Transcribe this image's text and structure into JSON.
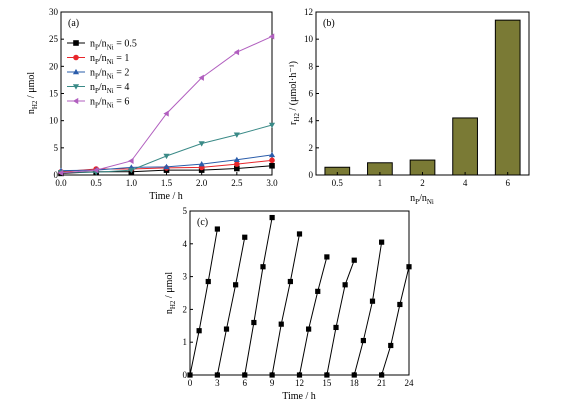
{
  "chart_data": [
    {
      "id": "a",
      "type": "line",
      "panel_label": "(a)",
      "xlabel": "Time / h",
      "ylabel_main": "n",
      "ylabel_sub": "H2",
      "ylabel_unit": " / μmol",
      "xlim": [
        0,
        3
      ],
      "ylim": [
        0,
        30
      ],
      "xticks": [
        "0.0",
        "0.5",
        "1.0",
        "1.5",
        "2.0",
        "2.5",
        "3.0"
      ],
      "xtick_values": [
        0,
        0.5,
        1,
        1.5,
        2,
        2.5,
        3
      ],
      "yticks": [
        "0",
        "5",
        "10",
        "15",
        "20",
        "25",
        "30"
      ],
      "ytick_values": [
        0,
        5,
        10,
        15,
        20,
        25,
        30
      ],
      "x": [
        0,
        0.5,
        1,
        1.5,
        2,
        2.5,
        3
      ],
      "legend_placement": "top-left",
      "series": [
        {
          "name": "n_P/n_Ni = 0.5",
          "label_a": "n",
          "sub_a": "P",
          "label_b": "/n",
          "sub_b": "Ni",
          "value": " = 0.5",
          "marker": "square",
          "color": "#000000",
          "values": [
            0.3,
            0.6,
            0.6,
            0.9,
            0.9,
            1.2,
            1.7
          ]
        },
        {
          "name": "n_P/n_Ni = 1",
          "label_a": "n",
          "sub_a": "P",
          "label_b": "/n",
          "sub_b": "Ni",
          "value": " = 1",
          "marker": "circle",
          "color": "#e8262b",
          "values": [
            0.6,
            1.1,
            1.1,
            1.3,
            1.4,
            2.0,
            2.7
          ]
        },
        {
          "name": "n_P/n_Ni = 2",
          "label_a": "n",
          "sub_a": "P",
          "label_b": "/n",
          "sub_b": "Ni",
          "value": " = 2",
          "marker": "triangle-up",
          "color": "#2a5caa",
          "values": [
            0.8,
            0.9,
            1.4,
            1.5,
            2.0,
            2.8,
            3.7
          ]
        },
        {
          "name": "n_P/n_Ni = 4",
          "label_a": "n",
          "sub_a": "P",
          "label_b": "/n",
          "sub_b": "Ni",
          "value": " = 4",
          "marker": "triangle-down",
          "color": "#3a8a87",
          "values": [
            0.5,
            0.5,
            0.9,
            3.5,
            5.8,
            7.4,
            9.2
          ]
        },
        {
          "name": "n_P/n_Ni = 6",
          "label_a": "n",
          "sub_a": "P",
          "label_b": "/n",
          "sub_b": "Ni",
          "value": " = 6",
          "marker": "triangle-left",
          "color": "#b15fbf",
          "values": [
            0.4,
            0.9,
            2.6,
            11.3,
            17.9,
            22.6,
            25.5
          ]
        }
      ]
    },
    {
      "id": "b",
      "type": "bar",
      "panel_label": "(b)",
      "xlabel_a": "n",
      "xlabel_sub_a": "P",
      "xlabel_b": "/n",
      "xlabel_sub_b": "Ni",
      "ylabel_main": "r",
      "ylabel_sub": "H2",
      "ylabel_unit": " / (μmol·h⁻¹)",
      "ylim": [
        0,
        12
      ],
      "yticks": [
        "0",
        "2",
        "4",
        "6",
        "8",
        "10",
        "12"
      ],
      "ytick_values": [
        0,
        2,
        4,
        6,
        8,
        10,
        12
      ],
      "bar_color": "#7a7a35",
      "categories": [
        "0.5",
        "1",
        "2",
        "4",
        "6"
      ],
      "values": [
        0.57,
        0.9,
        1.1,
        4.2,
        11.4
      ]
    },
    {
      "id": "c",
      "type": "line",
      "panel_label": "(c)",
      "xlabel": "Time / h",
      "ylabel_main": "n",
      "ylabel_sub": "H2",
      "ylabel_unit": " / μmol",
      "xlim": [
        0,
        24
      ],
      "ylim": [
        0,
        5
      ],
      "xticks": [
        "0",
        "3",
        "6",
        "9",
        "12",
        "15",
        "18",
        "21",
        "24"
      ],
      "xtick_values": [
        0,
        3,
        6,
        9,
        12,
        15,
        18,
        21,
        24
      ],
      "yticks": [
        "0",
        "1",
        "2",
        "3",
        "4",
        "5"
      ],
      "ytick_values": [
        0,
        1,
        2,
        3,
        4,
        5
      ],
      "marker": "square",
      "color": "#000000",
      "cycles": [
        {
          "x": [
            0,
            1,
            2,
            3
          ],
          "values": [
            0,
            1.35,
            2.85,
            4.45
          ]
        },
        {
          "x": [
            3,
            4,
            5,
            6
          ],
          "values": [
            0,
            1.4,
            2.75,
            4.2
          ]
        },
        {
          "x": [
            6,
            7,
            8,
            9
          ],
          "values": [
            0,
            1.6,
            3.3,
            4.8
          ]
        },
        {
          "x": [
            9,
            10,
            11,
            12
          ],
          "values": [
            0,
            1.55,
            2.85,
            4.3
          ]
        },
        {
          "x": [
            12,
            13,
            14,
            15
          ],
          "values": [
            0,
            1.4,
            2.55,
            3.6
          ]
        },
        {
          "x": [
            15,
            16,
            17,
            18
          ],
          "values": [
            0,
            1.45,
            2.75,
            3.5
          ]
        },
        {
          "x": [
            18,
            19,
            20,
            21
          ],
          "values": [
            0,
            1.05,
            2.25,
            4.05
          ]
        },
        {
          "x": [
            21,
            22,
            23,
            24
          ],
          "values": [
            0,
            0.9,
            2.15,
            3.3
          ]
        }
      ]
    }
  ]
}
